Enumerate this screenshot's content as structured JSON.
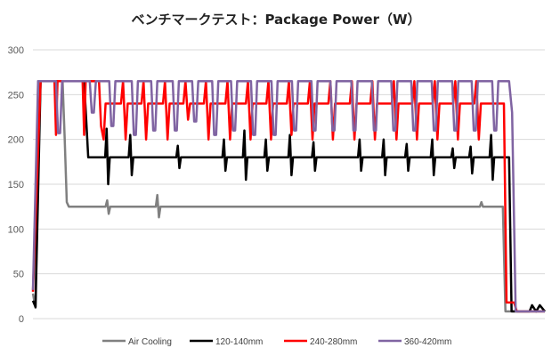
{
  "chart_data": {
    "type": "line",
    "title": "ベンチマークテスト：Package Power（W）",
    "xlabel": "",
    "ylabel": "",
    "ylim": [
      0,
      300
    ],
    "xlim": [
      0,
      100
    ],
    "yticks": [
      "0",
      "50",
      "100",
      "150",
      "200",
      "250",
      "300"
    ],
    "grid": true,
    "legend_position": "bottom",
    "series": [
      {
        "name": "Air Cooling",
        "color": "#808080",
        "points": [
          [
            0,
            28
          ],
          [
            0.5,
            12
          ],
          [
            1,
            265
          ],
          [
            5.8,
            265
          ],
          [
            6.2,
            200
          ],
          [
            6.6,
            130
          ],
          [
            7,
            125
          ],
          [
            14.2,
            125
          ],
          [
            14.5,
            132
          ],
          [
            14.8,
            117
          ],
          [
            15.1,
            125
          ],
          [
            24,
            125
          ],
          [
            24.3,
            138
          ],
          [
            24.6,
            113
          ],
          [
            24.9,
            125
          ],
          [
            87.3,
            125
          ],
          [
            87.6,
            130
          ],
          [
            87.9,
            125
          ],
          [
            91.8,
            125
          ],
          [
            92.3,
            8
          ],
          [
            100,
            8
          ]
        ]
      },
      {
        "name": "120-140mm",
        "color": "#000000",
        "points": [
          [
            0,
            20
          ],
          [
            0.5,
            13
          ],
          [
            1.5,
            265
          ],
          [
            10,
            265
          ],
          [
            10.8,
            180
          ],
          [
            14.1,
            180
          ],
          [
            14.4,
            212
          ],
          [
            14.7,
            150
          ],
          [
            15,
            180
          ],
          [
            18.7,
            180
          ],
          [
            19,
            205
          ],
          [
            19.3,
            160
          ],
          [
            19.6,
            180
          ],
          [
            28,
            180
          ],
          [
            28.3,
            193
          ],
          [
            28.6,
            168
          ],
          [
            28.9,
            180
          ],
          [
            37,
            180
          ],
          [
            37.3,
            200
          ],
          [
            37.6,
            165
          ],
          [
            37.9,
            180
          ],
          [
            41,
            180
          ],
          [
            41.3,
            210
          ],
          [
            41.6,
            155
          ],
          [
            41.9,
            180
          ],
          [
            45.2,
            180
          ],
          [
            45.5,
            200
          ],
          [
            45.8,
            165
          ],
          [
            46.1,
            180
          ],
          [
            49.9,
            180
          ],
          [
            50.2,
            205
          ],
          [
            50.5,
            160
          ],
          [
            50.8,
            180
          ],
          [
            54.5,
            180
          ],
          [
            54.8,
            197
          ],
          [
            55.1,
            165
          ],
          [
            55.4,
            180
          ],
          [
            63.5,
            180
          ],
          [
            63.8,
            200
          ],
          [
            64.1,
            165
          ],
          [
            64.4,
            180
          ],
          [
            68.2,
            180
          ],
          [
            68.5,
            200
          ],
          [
            68.8,
            160
          ],
          [
            69.1,
            180
          ],
          [
            72.7,
            180
          ],
          [
            73,
            195
          ],
          [
            73.3,
            165
          ],
          [
            73.6,
            180
          ],
          [
            77.7,
            180
          ],
          [
            78,
            200
          ],
          [
            78.3,
            160
          ],
          [
            78.6,
            180
          ],
          [
            81.7,
            180
          ],
          [
            82,
            190
          ],
          [
            82.3,
            168
          ],
          [
            82.6,
            180
          ],
          [
            85.2,
            180
          ],
          [
            85.5,
            192
          ],
          [
            85.8,
            162
          ],
          [
            86.1,
            180
          ],
          [
            89.2,
            180
          ],
          [
            89.5,
            205
          ],
          [
            89.8,
            155
          ],
          [
            90.1,
            180
          ],
          [
            93,
            180
          ],
          [
            93.5,
            8
          ],
          [
            97,
            8
          ],
          [
            97.5,
            15
          ],
          [
            98.3,
            8
          ],
          [
            99,
            15
          ],
          [
            100,
            8
          ]
        ]
      },
      {
        "name": "240-280mm",
        "color": "#FF0000",
        "points": [
          [
            0,
            30
          ],
          [
            1.5,
            265
          ],
          [
            4.2,
            265
          ],
          [
            4.5,
            205
          ],
          [
            4.8,
            265
          ],
          [
            9.7,
            265
          ],
          [
            10,
            205
          ],
          [
            10.3,
            265
          ],
          [
            12.9,
            265
          ],
          [
            13.3,
            215
          ],
          [
            13.8,
            200
          ],
          [
            14.2,
            240
          ],
          [
            17.2,
            240
          ],
          [
            17.6,
            265
          ],
          [
            18.1,
            200
          ],
          [
            18.5,
            240
          ],
          [
            21.2,
            240
          ],
          [
            21.6,
            265
          ],
          [
            22.1,
            200
          ],
          [
            22.5,
            240
          ],
          [
            25.4,
            240
          ],
          [
            25.8,
            265
          ],
          [
            26.3,
            200
          ],
          [
            26.7,
            240
          ],
          [
            29.4,
            240
          ],
          [
            29.8,
            265
          ],
          [
            30.3,
            222
          ],
          [
            30.7,
            240
          ],
          [
            33.4,
            240
          ],
          [
            33.8,
            265
          ],
          [
            34.3,
            200
          ],
          [
            34.7,
            240
          ],
          [
            37.6,
            240
          ],
          [
            38,
            265
          ],
          [
            38.5,
            200
          ],
          [
            38.9,
            240
          ],
          [
            41.6,
            240
          ],
          [
            42,
            265
          ],
          [
            42.5,
            200
          ],
          [
            42.9,
            240
          ],
          [
            45.6,
            240
          ],
          [
            46,
            265
          ],
          [
            46.5,
            200
          ],
          [
            46.9,
            240
          ],
          [
            49.6,
            240
          ],
          [
            50,
            265
          ],
          [
            50.5,
            205
          ],
          [
            50.9,
            240
          ],
          [
            53.7,
            240
          ],
          [
            54.1,
            265
          ],
          [
            54.6,
            200
          ],
          [
            55,
            240
          ],
          [
            57.7,
            240
          ],
          [
            58.1,
            265
          ],
          [
            58.6,
            200
          ],
          [
            59,
            240
          ],
          [
            61.9,
            240
          ],
          [
            62.3,
            265
          ],
          [
            62.8,
            200
          ],
          [
            63.2,
            240
          ],
          [
            65.9,
            240
          ],
          [
            66.3,
            265
          ],
          [
            66.8,
            200
          ],
          [
            67.2,
            240
          ],
          [
            70.1,
            240
          ],
          [
            70.5,
            265
          ],
          [
            71,
            200
          ],
          [
            71.4,
            240
          ],
          [
            74.1,
            240
          ],
          [
            74.5,
            265
          ],
          [
            75,
            200
          ],
          [
            75.4,
            240
          ],
          [
            78.1,
            240
          ],
          [
            78.5,
            265
          ],
          [
            79,
            200
          ],
          [
            79.4,
            240
          ],
          [
            82.1,
            240
          ],
          [
            82.5,
            265
          ],
          [
            83,
            200
          ],
          [
            83.4,
            240
          ],
          [
            86.2,
            240
          ],
          [
            86.6,
            265
          ],
          [
            87.1,
            200
          ],
          [
            87.5,
            240
          ],
          [
            92,
            240
          ],
          [
            92.5,
            18
          ],
          [
            94,
            18
          ],
          [
            94.5,
            8
          ],
          [
            100,
            8
          ]
        ]
      },
      {
        "name": "360-420mm",
        "color": "#8064A2",
        "points": [
          [
            0,
            32
          ],
          [
            1,
            265
          ],
          [
            4.5,
            265
          ],
          [
            4.9,
            207
          ],
          [
            5.3,
            207
          ],
          [
            5.7,
            265
          ],
          [
            11.1,
            265
          ],
          [
            11.5,
            230
          ],
          [
            11.9,
            230
          ],
          [
            12.3,
            265
          ],
          [
            14.9,
            265
          ],
          [
            15.3,
            215
          ],
          [
            15.7,
            215
          ],
          [
            16.1,
            265
          ],
          [
            19.3,
            265
          ],
          [
            19.7,
            205
          ],
          [
            20.1,
            205
          ],
          [
            20.5,
            265
          ],
          [
            23.1,
            265
          ],
          [
            23.5,
            210
          ],
          [
            23.9,
            210
          ],
          [
            24.3,
            265
          ],
          [
            27.3,
            265
          ],
          [
            27.7,
            210
          ],
          [
            28.1,
            210
          ],
          [
            28.5,
            265
          ],
          [
            31.1,
            265
          ],
          [
            31.5,
            220
          ],
          [
            31.9,
            220
          ],
          [
            32.3,
            265
          ],
          [
            35,
            265
          ],
          [
            35.4,
            205
          ],
          [
            35.8,
            205
          ],
          [
            36.2,
            265
          ],
          [
            38.7,
            265
          ],
          [
            39.1,
            210
          ],
          [
            39.5,
            210
          ],
          [
            39.9,
            265
          ],
          [
            42.6,
            265
          ],
          [
            43,
            205
          ],
          [
            43.4,
            205
          ],
          [
            43.8,
            265
          ],
          [
            46.6,
            265
          ],
          [
            47,
            205
          ],
          [
            47.4,
            205
          ],
          [
            47.8,
            265
          ],
          [
            50.6,
            265
          ],
          [
            51,
            210
          ],
          [
            51.4,
            210
          ],
          [
            51.8,
            265
          ],
          [
            54.4,
            265
          ],
          [
            54.8,
            210
          ],
          [
            55.2,
            210
          ],
          [
            55.6,
            265
          ],
          [
            58.1,
            265
          ],
          [
            58.5,
            210
          ],
          [
            58.9,
            210
          ],
          [
            59.3,
            265
          ],
          [
            62.2,
            265
          ],
          [
            62.6,
            210
          ],
          [
            63,
            210
          ],
          [
            63.4,
            265
          ],
          [
            66.2,
            265
          ],
          [
            66.6,
            210
          ],
          [
            67,
            210
          ],
          [
            67.4,
            265
          ],
          [
            70,
            265
          ],
          [
            70.4,
            210
          ],
          [
            70.8,
            210
          ],
          [
            71.2,
            265
          ],
          [
            73.9,
            265
          ],
          [
            74.3,
            210
          ],
          [
            74.7,
            210
          ],
          [
            75.1,
            265
          ],
          [
            77.9,
            265
          ],
          [
            78.3,
            210
          ],
          [
            78.7,
            210
          ],
          [
            79.1,
            265
          ],
          [
            81.9,
            265
          ],
          [
            82.3,
            210
          ],
          [
            82.7,
            210
          ],
          [
            83.1,
            265
          ],
          [
            85.7,
            265
          ],
          [
            86.1,
            210
          ],
          [
            86.5,
            210
          ],
          [
            86.9,
            265
          ],
          [
            89.7,
            265
          ],
          [
            90.1,
            210
          ],
          [
            90.5,
            210
          ],
          [
            90.9,
            265
          ],
          [
            93,
            265
          ],
          [
            93.6,
            230
          ],
          [
            94.3,
            8
          ],
          [
            100,
            8
          ]
        ]
      }
    ]
  }
}
